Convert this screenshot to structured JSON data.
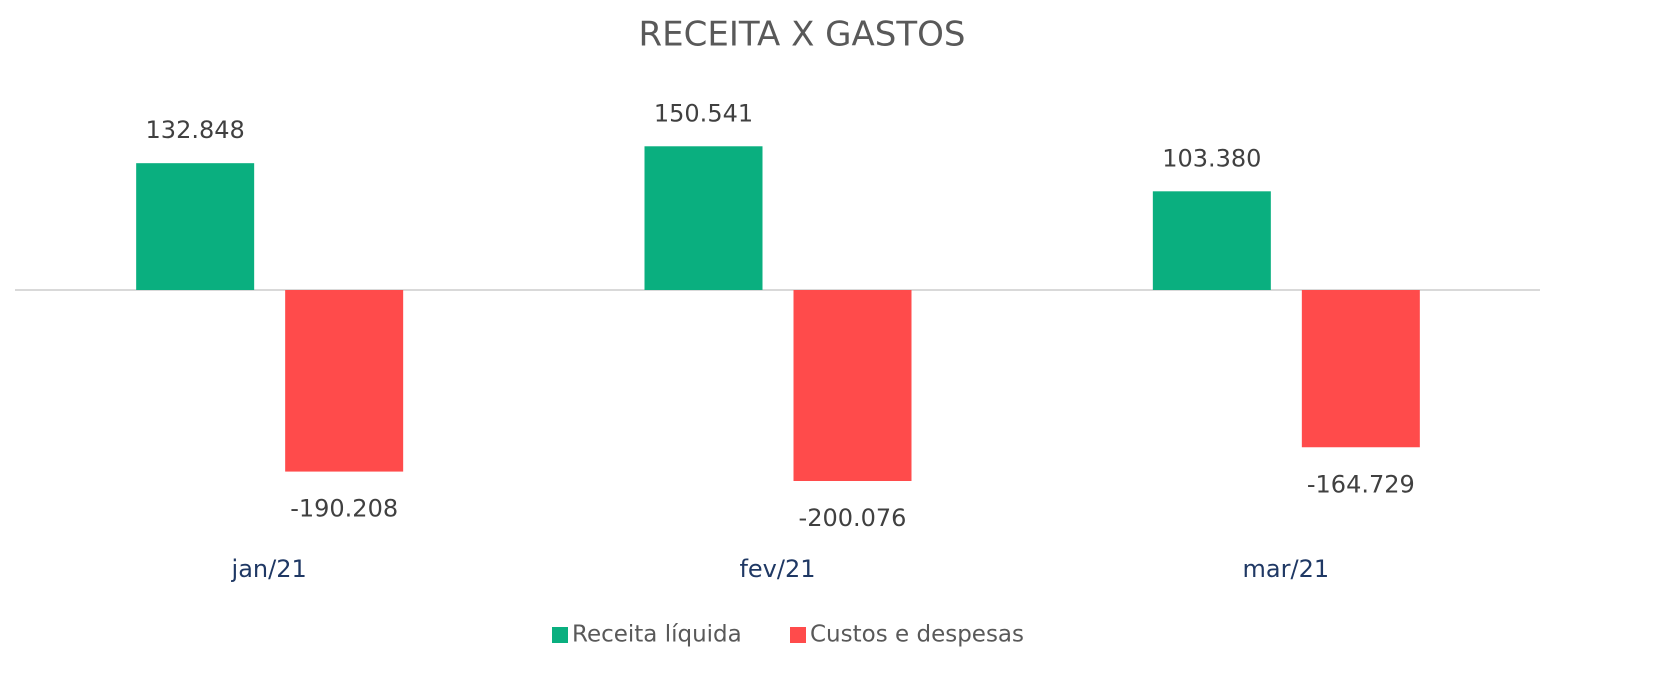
{
  "chart_data": {
    "type": "bar",
    "title": "RECEITA X GASTOS",
    "categories": [
      "jan/21",
      "fev/21",
      "mar/21"
    ],
    "series": [
      {
        "name": "Receita líquida",
        "color": "#0aaf7f",
        "values": [
          132848,
          150541,
          103380
        ],
        "value_labels": [
          "132.848",
          "150.541",
          "103.380"
        ]
      },
      {
        "name": "Custos e despesas",
        "color": "#ff4b4b",
        "values": [
          -190208,
          -200076,
          -164729
        ],
        "value_labels": [
          "-190.208",
          "-200.076",
          "-164.729"
        ]
      }
    ],
    "legend": "bottom"
  }
}
